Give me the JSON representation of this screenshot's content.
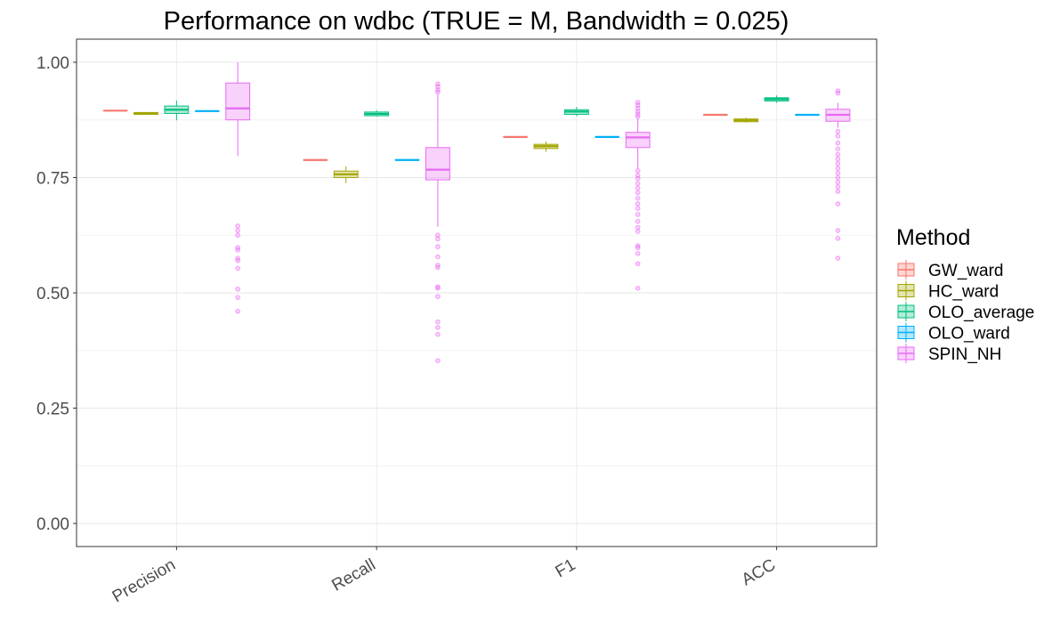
{
  "chart_data": {
    "type": "box",
    "title": "Performance on wdbc (TRUE = M, Bandwidth = 0.025)",
    "xlabel": "",
    "ylabel": "",
    "ylim": [
      -0.05,
      1.05
    ],
    "yticks": [
      "0.00",
      "0.25",
      "0.50",
      "0.75",
      "1.00"
    ],
    "categories": [
      "Precision",
      "Recall",
      "F1",
      "ACC"
    ],
    "grid": true,
    "legend": {
      "title": "Method",
      "position": "right"
    },
    "series": [
      {
        "name": "GW_ward",
        "color": "#F8766D",
        "boxes": [
          {
            "q1": 0.895,
            "median": 0.895,
            "q3": 0.895,
            "low": 0.895,
            "high": 0.895,
            "outliers": []
          },
          {
            "q1": 0.788,
            "median": 0.788,
            "q3": 0.788,
            "low": 0.788,
            "high": 0.788,
            "outliers": []
          },
          {
            "q1": 0.838,
            "median": 0.838,
            "q3": 0.838,
            "low": 0.838,
            "high": 0.838,
            "outliers": []
          },
          {
            "q1": 0.886,
            "median": 0.886,
            "q3": 0.886,
            "low": 0.886,
            "high": 0.886,
            "outliers": []
          }
        ]
      },
      {
        "name": "HC_ward",
        "color": "#A3A500",
        "boxes": [
          {
            "q1": 0.887,
            "median": 0.889,
            "q3": 0.891,
            "low": 0.886,
            "high": 0.892,
            "outliers": []
          },
          {
            "q1": 0.75,
            "median": 0.757,
            "q3": 0.764,
            "low": 0.738,
            "high": 0.774,
            "outliers": []
          },
          {
            "q1": 0.813,
            "median": 0.818,
            "q3": 0.822,
            "low": 0.806,
            "high": 0.828,
            "outliers": []
          },
          {
            "q1": 0.871,
            "median": 0.874,
            "q3": 0.877,
            "low": 0.869,
            "high": 0.88,
            "outliers": []
          }
        ]
      },
      {
        "name": "OLO_average",
        "color": "#00BF7D",
        "boxes": [
          {
            "q1": 0.889,
            "median": 0.897,
            "q3": 0.905,
            "low": 0.874,
            "high": 0.917,
            "outliers": []
          },
          {
            "q1": 0.884,
            "median": 0.888,
            "q3": 0.892,
            "low": 0.882,
            "high": 0.896,
            "outliers": []
          },
          {
            "q1": 0.887,
            "median": 0.893,
            "q3": 0.897,
            "low": 0.883,
            "high": 0.903,
            "outliers": []
          },
          {
            "q1": 0.916,
            "median": 0.92,
            "q3": 0.923,
            "low": 0.912,
            "high": 0.928,
            "outliers": []
          }
        ]
      },
      {
        "name": "OLO_ward",
        "color": "#00B0F6",
        "boxes": [
          {
            "q1": 0.894,
            "median": 0.894,
            "q3": 0.894,
            "low": 0.894,
            "high": 0.894,
            "outliers": []
          },
          {
            "q1": 0.788,
            "median": 0.788,
            "q3": 0.788,
            "low": 0.788,
            "high": 0.788,
            "outliers": []
          },
          {
            "q1": 0.838,
            "median": 0.838,
            "q3": 0.838,
            "low": 0.838,
            "high": 0.838,
            "outliers": []
          },
          {
            "q1": 0.886,
            "median": 0.886,
            "q3": 0.886,
            "low": 0.886,
            "high": 0.886,
            "outliers": []
          }
        ]
      },
      {
        "name": "SPIN_NH",
        "color": "#E76BF3",
        "boxes": [
          {
            "q1": 0.875,
            "median": 0.9,
            "q3": 0.955,
            "low": 0.797,
            "high": 1.0,
            "outliers": [
              0.645,
              0.635,
              0.625,
              0.598,
              0.593,
              0.575,
              0.57,
              0.553,
              0.508,
              0.49,
              0.46
            ]
          },
          {
            "q1": 0.745,
            "median": 0.767,
            "q3": 0.815,
            "low": 0.643,
            "high": 0.93,
            "outliers": [
              0.953,
              0.947,
              0.94,
              0.935,
              0.625,
              0.617,
              0.6,
              0.578,
              0.56,
              0.555,
              0.513,
              0.51,
              0.492,
              0.437,
              0.425,
              0.41,
              0.353
            ]
          },
          {
            "q1": 0.815,
            "median": 0.837,
            "q3": 0.848,
            "low": 0.77,
            "high": 0.878,
            "outliers": [
              0.913,
              0.907,
              0.9,
              0.893,
              0.887,
              0.882,
              0.765,
              0.755,
              0.748,
              0.737,
              0.727,
              0.717,
              0.705,
              0.693,
              0.683,
              0.67,
              0.655,
              0.642,
              0.633,
              0.602,
              0.598,
              0.585,
              0.563,
              0.51
            ]
          },
          {
            "q1": 0.872,
            "median": 0.886,
            "q3": 0.898,
            "low": 0.858,
            "high": 0.912,
            "outliers": [
              0.938,
              0.933,
              0.85,
              0.84,
              0.825,
              0.812,
              0.8,
              0.79,
              0.78,
              0.77,
              0.76,
              0.75,
              0.74,
              0.73,
              0.72,
              0.693,
              0.635,
              0.618,
              0.575
            ]
          }
        ]
      }
    ]
  }
}
